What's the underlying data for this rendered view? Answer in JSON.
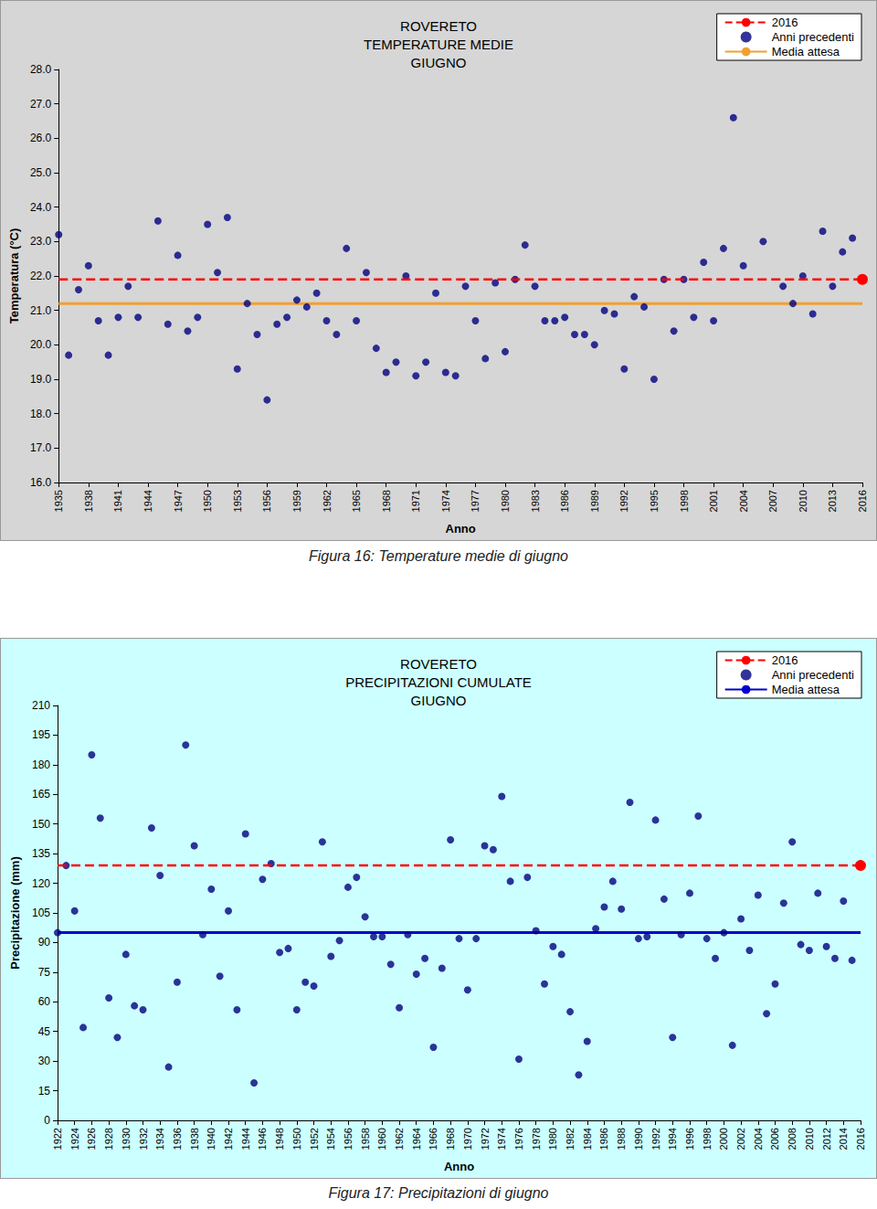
{
  "chart_data": [
    {
      "type": "scatter",
      "title": "ROVERETO\nTEMPERATURE MEDIE\nGIUGNO",
      "caption": "Figura 16: Temperature medie di giugno",
      "x_label": "Anno",
      "y_label": "Temperatura (°C)",
      "xlim": [
        1935,
        2016
      ],
      "xticks": [
        1935,
        1938,
        1941,
        1944,
        1947,
        1950,
        1953,
        1956,
        1959,
        1962,
        1965,
        1968,
        1971,
        1974,
        1977,
        1980,
        1983,
        1986,
        1989,
        1992,
        1995,
        1998,
        2001,
        2004,
        2007,
        2010,
        2013,
        2016
      ],
      "ylim": [
        16,
        28
      ],
      "yticks": [
        {
          "value": 16,
          "label": "16.0"
        },
        {
          "value": 17,
          "label": "17.0"
        },
        {
          "value": 18,
          "label": "18.0"
        },
        {
          "value": 19,
          "label": "19.0"
        },
        {
          "value": 20,
          "label": "20.0"
        },
        {
          "value": 21,
          "label": "21.0"
        },
        {
          "value": 22,
          "label": "22.0"
        },
        {
          "value": 23,
          "label": "23.0"
        },
        {
          "value": 24,
          "label": "24.0"
        },
        {
          "value": 25,
          "label": "25.0"
        },
        {
          "value": 26,
          "label": "26.0"
        },
        {
          "value": 27,
          "label": "27.0"
        },
        {
          "value": 28,
          "label": "28.0"
        }
      ],
      "grid": false,
      "legend": "top right",
      "series": [
        {
          "name": "2016",
          "type": "scatter",
          "color": "#ff0000",
          "marker": "circle",
          "line_style": "dashed",
          "x": [
            2016
          ],
          "values": [
            21.9
          ]
        },
        {
          "name": "Anni precedenti",
          "type": "scatter",
          "color": "#000080",
          "marker": "circle",
          "x": [
            1935,
            1936,
            1937,
            1938,
            1939,
            1940,
            1941,
            1942,
            1943,
            1945,
            1946,
            1947,
            1948,
            1949,
            1950,
            1951,
            1952,
            1953,
            1954,
            1955,
            1956,
            1957,
            1958,
            1959,
            1960,
            1961,
            1962,
            1963,
            1964,
            1965,
            1966,
            1967,
            1968,
            1969,
            1970,
            1971,
            1972,
            1973,
            1974,
            1975,
            1976,
            1977,
            1978,
            1979,
            1980,
            1981,
            1982,
            1983,
            1984,
            1985,
            1986,
            1987,
            1988,
            1989,
            1990,
            1991,
            1992,
            1993,
            1994,
            1995,
            1996,
            1997,
            1998,
            1999,
            2000,
            2001,
            2002,
            2003,
            2004,
            2006,
            2008,
            2009,
            2010,
            2011,
            2012,
            2013,
            2014,
            2015
          ],
          "values": [
            23.2,
            19.7,
            21.6,
            22.3,
            20.7,
            19.7,
            20.8,
            21.7,
            20.8,
            23.6,
            20.6,
            22.6,
            20.4,
            20.8,
            23.5,
            22.1,
            23.7,
            19.3,
            21.2,
            20.3,
            18.4,
            20.6,
            20.8,
            21.3,
            21.1,
            21.5,
            20.7,
            20.3,
            22.8,
            20.7,
            22.1,
            19.9,
            19.2,
            19.5,
            22.0,
            19.1,
            19.5,
            21.5,
            19.2,
            19.1,
            21.7,
            20.7,
            19.6,
            21.8,
            19.8,
            21.9,
            22.9,
            21.7,
            20.7,
            20.7,
            20.8,
            20.3,
            20.3,
            20.0,
            21.0,
            20.9,
            19.3,
            21.4,
            21.1,
            19.0,
            21.9,
            20.4,
            21.9,
            20.8,
            22.4,
            20.7,
            22.8,
            26.6,
            22.3,
            23.0,
            21.7,
            21.2,
            22.0,
            20.9,
            23.3,
            21.7,
            22.7,
            23.1
          ]
        },
        {
          "name": "Media attesa",
          "type": "hline",
          "color": "#f0a030",
          "line_style": "solid",
          "values": [
            21.2
          ]
        }
      ]
    },
    {
      "type": "scatter",
      "title": "ROVERETO\nPRECIPITAZIONI CUMULATE\nGIUGNO",
      "caption": "Figura 17: Precipitazioni di giugno",
      "x_label": "Anno",
      "y_label": "Precipitazione (mm)",
      "xlim": [
        1922,
        2016
      ],
      "xticks": [
        1922,
        1924,
        1926,
        1928,
        1930,
        1932,
        1934,
        1936,
        1938,
        1940,
        1942,
        1944,
        1946,
        1948,
        1950,
        1952,
        1954,
        1956,
        1958,
        1960,
        1962,
        1964,
        1966,
        1968,
        1970,
        1972,
        1974,
        1976,
        1978,
        1980,
        1982,
        1984,
        1986,
        1988,
        1990,
        1992,
        1994,
        1996,
        1998,
        2000,
        2002,
        2004,
        2006,
        2008,
        2010,
        2012,
        2014,
        2016
      ],
      "ylim": [
        0,
        210
      ],
      "yticks": [
        0,
        15,
        30,
        45,
        60,
        75,
        90,
        105,
        120,
        135,
        150,
        165,
        180,
        195,
        210
      ],
      "grid": false,
      "legend": "top right",
      "series": [
        {
          "name": "2016",
          "type": "scatter",
          "color": "#ff0000",
          "marker": "circle",
          "line_style": "dashed",
          "x": [
            2016
          ],
          "values": [
            129
          ]
        },
        {
          "name": "Anni precedenti",
          "type": "scatter",
          "color": "#000080",
          "marker": "circle",
          "x": [
            1922,
            1923,
            1924,
            1925,
            1926,
            1927,
            1928,
            1929,
            1930,
            1931,
            1932,
            1933,
            1934,
            1935,
            1936,
            1937,
            1938,
            1939,
            1940,
            1941,
            1942,
            1943,
            1944,
            1945,
            1946,
            1947,
            1948,
            1949,
            1950,
            1951,
            1952,
            1953,
            1954,
            1955,
            1956,
            1957,
            1958,
            1959,
            1960,
            1961,
            1962,
            1963,
            1964,
            1965,
            1966,
            1967,
            1968,
            1969,
            1970,
            1971,
            1972,
            1973,
            1974,
            1975,
            1976,
            1977,
            1978,
            1979,
            1980,
            1981,
            1982,
            1983,
            1984,
            1985,
            1986,
            1987,
            1988,
            1989,
            1990,
            1991,
            1992,
            1993,
            1994,
            1995,
            1996,
            1997,
            1998,
            1999,
            2000,
            2001,
            2002,
            2003,
            2004,
            2005,
            2006,
            2007,
            2008,
            2009,
            2010,
            2011,
            2012,
            2013,
            2014,
            2015
          ],
          "values": [
            95,
            129,
            106,
            47,
            185,
            153,
            62,
            42,
            84,
            58,
            56,
            148,
            124,
            27,
            70,
            190,
            139,
            94,
            117,
            73,
            106,
            56,
            145,
            19,
            122,
            130,
            85,
            87,
            56,
            70,
            68,
            141,
            83,
            91,
            118,
            123,
            103,
            93,
            93,
            79,
            57,
            94,
            74,
            82,
            37,
            77,
            142,
            92,
            66,
            92,
            139,
            137,
            164,
            121,
            31,
            123,
            96,
            69,
            88,
            84,
            55,
            23,
            40,
            97,
            108,
            121,
            107,
            161,
            92,
            93,
            152,
            112,
            42,
            94,
            115,
            154,
            92,
            82,
            95,
            38,
            102,
            86,
            114,
            54,
            69,
            110,
            141,
            89,
            86,
            115,
            88,
            82,
            111,
            81
          ]
        },
        {
          "name": "Media attesa",
          "type": "hline",
          "color": "#0000cc",
          "line_style": "solid",
          "values": [
            95
          ]
        }
      ]
    }
  ]
}
